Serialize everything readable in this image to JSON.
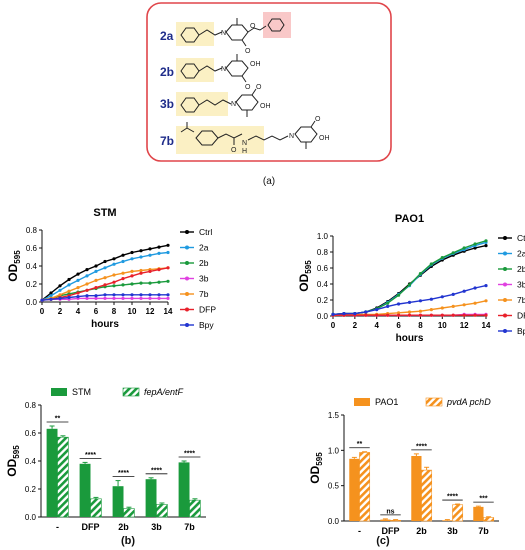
{
  "panels": {
    "a": {
      "label": "(a)",
      "compounds": [
        {
          "id": "2a"
        },
        {
          "id": "2b"
        },
        {
          "id": "3b"
        },
        {
          "id": "7b"
        }
      ],
      "hetero_labels": {
        "N": "N",
        "O": "O",
        "OH": "OH",
        "H": "H"
      }
    },
    "b": {
      "label": "(b)"
    },
    "c": {
      "label": "(c)"
    }
  },
  "colors": {
    "STM": "#1a9a3c",
    "PAO1": "#f5921e",
    "Ctrl": "#000000",
    "2a": "#1f9ae0",
    "2b": "#1a9a3c",
    "3b": "#e040e0",
    "7b": "#f5921e",
    "DFP": "#e8202a",
    "Bpy": "#2235d0",
    "highlight_yellow": "#fbf0c4",
    "highlight_pink": "#f9c8c8",
    "frame_red": "#e0454a"
  },
  "chart_data": [
    {
      "type": "line",
      "title": "STM",
      "xlabel": "hours",
      "ylabel": "OD595",
      "ylabel_main": "OD",
      "ylabel_sub": "595",
      "xlim": [
        0,
        14
      ],
      "ylim": [
        0,
        0.8
      ],
      "xticks": [
        0,
        2,
        4,
        6,
        8,
        10,
        12,
        14
      ],
      "yticks": [
        0.0,
        0.2,
        0.4,
        0.6,
        0.8
      ],
      "ytick_labels": [
        "0.0",
        "0.2",
        "0.4",
        "0.6",
        "0.8"
      ],
      "legend_position": "right",
      "x": [
        0,
        1,
        2,
        3,
        4,
        5,
        6,
        7,
        8,
        9,
        10,
        11,
        12,
        13,
        14
      ],
      "series": [
        {
          "name": "Ctrl",
          "values": [
            0.02,
            0.1,
            0.18,
            0.25,
            0.31,
            0.36,
            0.4,
            0.45,
            0.48,
            0.52,
            0.55,
            0.57,
            0.59,
            0.61,
            0.63
          ]
        },
        {
          "name": "2a",
          "values": [
            0.02,
            0.07,
            0.13,
            0.19,
            0.24,
            0.29,
            0.34,
            0.38,
            0.42,
            0.45,
            0.48,
            0.5,
            0.52,
            0.54,
            0.55
          ]
        },
        {
          "name": "2b",
          "values": [
            0.02,
            0.04,
            0.07,
            0.09,
            0.11,
            0.13,
            0.15,
            0.17,
            0.18,
            0.19,
            0.2,
            0.21,
            0.21,
            0.22,
            0.23
          ]
        },
        {
          "name": "3b",
          "values": [
            0.02,
            0.03,
            0.03,
            0.03,
            0.04,
            0.04,
            0.04,
            0.04,
            0.04,
            0.04,
            0.04,
            0.04,
            0.04,
            0.04,
            0.04
          ]
        },
        {
          "name": "7b",
          "values": [
            0.02,
            0.04,
            0.08,
            0.12,
            0.16,
            0.2,
            0.24,
            0.27,
            0.3,
            0.32,
            0.34,
            0.35,
            0.36,
            0.37,
            0.38
          ]
        },
        {
          "name": "DFP",
          "values": [
            0.02,
            0.03,
            0.05,
            0.07,
            0.1,
            0.13,
            0.16,
            0.19,
            0.22,
            0.26,
            0.29,
            0.32,
            0.34,
            0.36,
            0.38
          ]
        },
        {
          "name": "Bpy",
          "values": [
            0.02,
            0.03,
            0.04,
            0.05,
            0.06,
            0.07,
            0.07,
            0.08,
            0.08,
            0.08,
            0.08,
            0.08,
            0.08,
            0.08,
            0.08
          ]
        }
      ]
    },
    {
      "type": "line",
      "title": "PAO1",
      "xlabel": "hours",
      "ylabel": "OD595",
      "ylabel_main": "OD",
      "ylabel_sub": "595",
      "xlim": [
        0,
        14
      ],
      "ylim": [
        0,
        1.0
      ],
      "xticks": [
        0,
        2,
        4,
        6,
        8,
        10,
        12,
        14
      ],
      "yticks": [
        0.0,
        0.2,
        0.4,
        0.6,
        0.8,
        1.0
      ],
      "ytick_labels": [
        "0.0",
        "0.2",
        "0.4",
        "0.6",
        "0.8",
        "1.0"
      ],
      "legend_position": "right",
      "x": [
        0,
        1,
        2,
        3,
        4,
        5,
        6,
        7,
        8,
        9,
        10,
        11,
        12,
        13,
        14
      ],
      "series": [
        {
          "name": "Ctrl",
          "values": [
            0.02,
            0.03,
            0.03,
            0.05,
            0.1,
            0.18,
            0.28,
            0.4,
            0.51,
            0.62,
            0.7,
            0.76,
            0.81,
            0.85,
            0.88
          ]
        },
        {
          "name": "2a",
          "values": [
            0.02,
            0.03,
            0.03,
            0.05,
            0.09,
            0.17,
            0.27,
            0.38,
            0.52,
            0.64,
            0.72,
            0.78,
            0.83,
            0.88,
            0.92
          ]
        },
        {
          "name": "2b",
          "values": [
            0.02,
            0.03,
            0.03,
            0.05,
            0.09,
            0.16,
            0.26,
            0.39,
            0.53,
            0.65,
            0.73,
            0.79,
            0.85,
            0.9,
            0.94
          ]
        },
        {
          "name": "3b",
          "values": [
            0.01,
            0.01,
            0.01,
            0.01,
            0.01,
            0.01,
            0.01,
            0.01,
            0.01,
            0.01,
            0.01,
            0.01,
            0.02,
            0.02,
            0.02
          ]
        },
        {
          "name": "7b",
          "values": [
            0.01,
            0.01,
            0.02,
            0.02,
            0.02,
            0.03,
            0.04,
            0.05,
            0.06,
            0.08,
            0.1,
            0.12,
            0.14,
            0.16,
            0.19
          ]
        },
        {
          "name": "DFP",
          "values": [
            0.01,
            0.01,
            0.01,
            0.01,
            0.01,
            0.01,
            0.01,
            0.01,
            0.01,
            0.01,
            0.01,
            0.01,
            0.01,
            0.01,
            0.01
          ]
        },
        {
          "name": "Bpy",
          "values": [
            0.02,
            0.03,
            0.03,
            0.05,
            0.08,
            0.12,
            0.15,
            0.17,
            0.19,
            0.21,
            0.24,
            0.27,
            0.31,
            0.35,
            0.38
          ]
        }
      ]
    },
    {
      "type": "bar",
      "ylabel": "OD595",
      "ylabel_main": "OD",
      "ylabel_sub": "595",
      "ylim": [
        0,
        0.8
      ],
      "yticks": [
        0.0,
        0.2,
        0.4,
        0.6,
        0.8
      ],
      "ytick_labels": [
        "0.0",
        "0.2",
        "0.4",
        "0.6",
        "0.8"
      ],
      "legend_position": "top",
      "categories": [
        "-",
        "DFP",
        "2b",
        "3b",
        "7b"
      ],
      "series": [
        {
          "name": "STM",
          "pattern": "solid",
          "values": [
            0.63,
            0.38,
            0.22,
            0.27,
            0.39
          ],
          "errors": [
            0.02,
            0.01,
            0.04,
            0.01,
            0.01
          ]
        },
        {
          "name": "fepA/entF",
          "pattern": "hatched",
          "values": [
            0.57,
            0.13,
            0.06,
            0.09,
            0.12
          ],
          "errors": [
            0.01,
            0.01,
            0.01,
            0.01,
            0.01
          ]
        }
      ],
      "significance": [
        "**",
        "****",
        "****",
        "****",
        "****"
      ]
    },
    {
      "type": "bar",
      "ylabel": "OD595",
      "ylabel_main": "OD",
      "ylabel_sub": "595",
      "ylim": [
        0,
        1.5
      ],
      "yticks": [
        0.0,
        0.5,
        1.0,
        1.5
      ],
      "ytick_labels": [
        "0.0",
        "0.5",
        "1.0",
        "1.5"
      ],
      "legend_position": "top",
      "categories": [
        "-",
        "DFP",
        "2b",
        "3b",
        "7b"
      ],
      "series": [
        {
          "name": "PAO1",
          "pattern": "solid",
          "values": [
            0.88,
            0.02,
            0.92,
            0.01,
            0.2
          ],
          "errors": [
            0.02,
            0.01,
            0.03,
            0.01,
            0.01
          ]
        },
        {
          "name": "pvdA pchD",
          "pattern": "hatched",
          "values": [
            0.97,
            0.01,
            0.72,
            0.23,
            0.05
          ],
          "errors": [
            0.01,
            0.01,
            0.04,
            0.01,
            0.01
          ]
        }
      ],
      "significance": [
        "**",
        "ns",
        "****",
        "****",
        "***"
      ]
    }
  ]
}
